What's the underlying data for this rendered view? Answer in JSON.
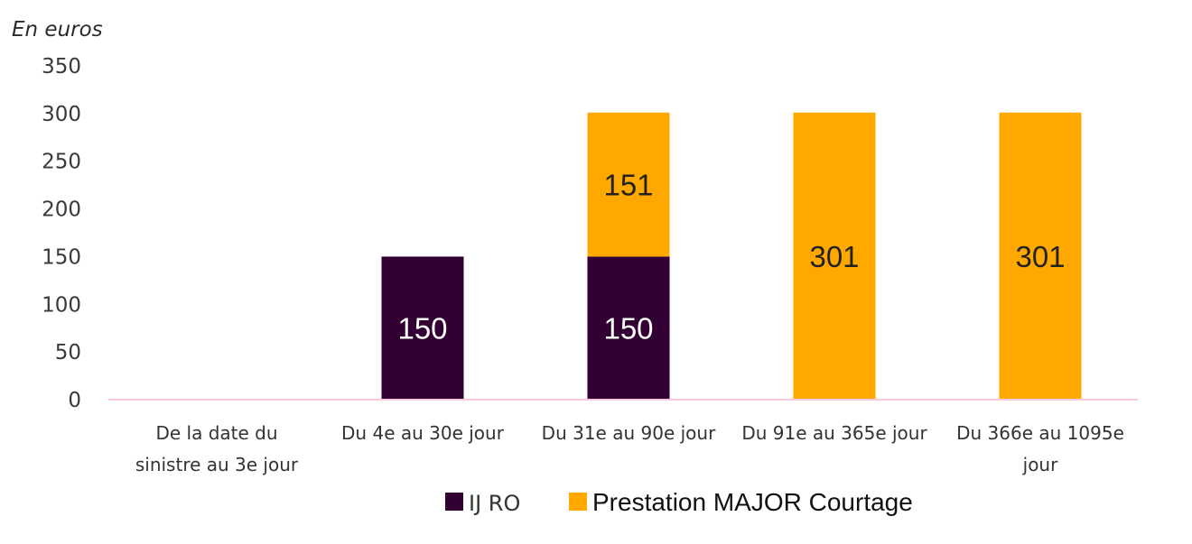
{
  "chart_data": {
    "type": "bar",
    "stacked": true,
    "ylabel": "En euros",
    "ylim": [
      0,
      350
    ],
    "yticks": [
      0,
      50,
      100,
      150,
      200,
      250,
      300,
      350
    ],
    "categories": [
      [
        "De la date du",
        "sinistre au 3e jour"
      ],
      [
        "Du 4e au 30e jour"
      ],
      [
        "Du 31e au 90e jour"
      ],
      [
        "Du 91e au 365e jour"
      ],
      [
        "Du 366e au 1095e",
        "jour"
      ]
    ],
    "series": [
      {
        "name": "IJ RO",
        "color": "#330033",
        "label_color": "#ffffff",
        "values": [
          0,
          150,
          150,
          0,
          0
        ]
      },
      {
        "name": "Prestation MAJOR Courtage",
        "color": "#FFA800",
        "label_color": "#222222",
        "values": [
          0,
          0,
          151,
          301,
          301
        ]
      }
    ],
    "legend": {
      "position": "bottom"
    },
    "axis_color": "#F9C8DA"
  }
}
